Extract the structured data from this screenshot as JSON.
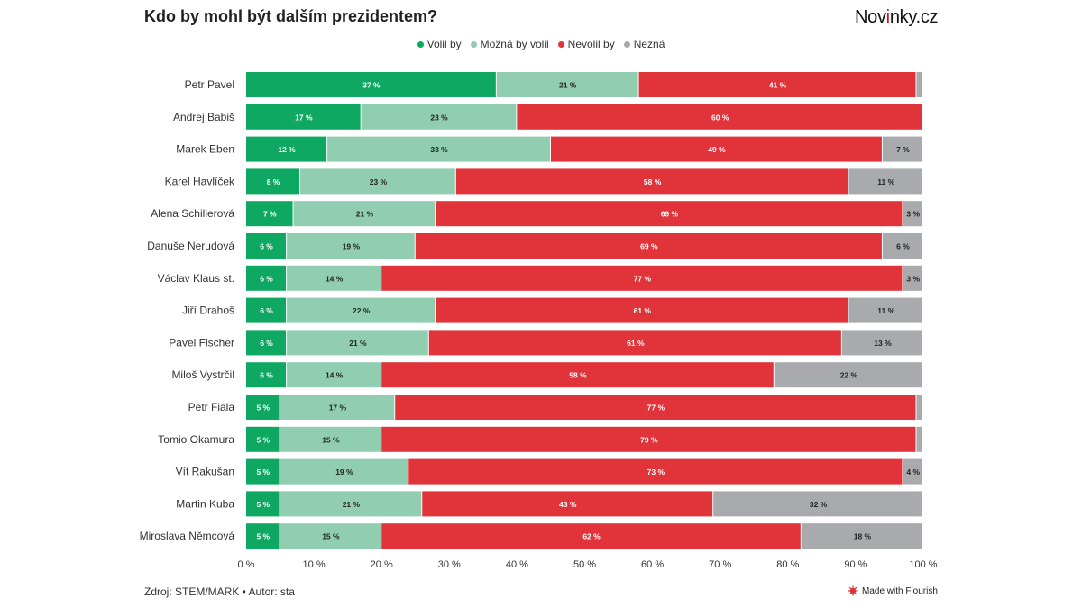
{
  "header": {
    "title": "Kdo by mohl být dalším prezidentem?",
    "brand_prefix": "Nov",
    "brand_highlight": "i",
    "brand_suffix": "nky.cz"
  },
  "footer": {
    "source": "Zdroj: STEM/MARK • Autor: sta",
    "flourish_label": "Made with Flourish"
  },
  "colors": {
    "voli": "#0fa862",
    "mozna": "#90cdb1",
    "nevolil": "#e0343a",
    "nezna": "#a8aaad",
    "brand_accent": "#e30613"
  },
  "chart_data": {
    "type": "bar",
    "orientation": "horizontal",
    "stacked": true,
    "title": "Kdo by mohl být dalším prezidentem?",
    "xlim": [
      0,
      100
    ],
    "xticks": [
      "0 %",
      "10 %",
      "20 %",
      "30 %",
      "40 %",
      "50 %",
      "60 %",
      "70 %",
      "80 %",
      "90 %",
      "100 %"
    ],
    "legend_position": "top-center",
    "categories": [
      "Petr Pavel",
      "Andrej Babiš",
      "Marek Eben",
      "Karel Havlíček",
      "Alena Schillerová",
      "Danuše Nerudová",
      "Václav Klaus st.",
      "Jiří Drahoš",
      "Pavel Fischer",
      "Miloš Vystrčil",
      "Petr Fiala",
      "Tomio Okamura",
      "Vít Rakušan",
      "Martin Kuba",
      "Miroslava Němcová"
    ],
    "series": [
      {
        "name": "Volil by",
        "color": "#0fa862",
        "label_color": "#ffffff",
        "values": [
          37,
          17,
          12,
          8,
          7,
          6,
          6,
          6,
          6,
          6,
          5,
          5,
          5,
          5,
          5
        ],
        "labels": [
          "37 %",
          "17 %",
          "12 %",
          "8 %",
          "7 %",
          "6 %",
          "6 %",
          "6 %",
          "6 %",
          "6 %",
          "5 %",
          "5 %",
          "5 %",
          "5 %",
          "5 %"
        ]
      },
      {
        "name": "Možná by volil",
        "color": "#90cdb1",
        "label_color": "#222222",
        "values": [
          21,
          23,
          33,
          23,
          21,
          19,
          14,
          22,
          21,
          14,
          17,
          15,
          19,
          21,
          15
        ],
        "labels": [
          "21 %",
          "23 %",
          "33 %",
          "23 %",
          "21 %",
          "19 %",
          "14 %",
          "22 %",
          "21 %",
          "14 %",
          "17 %",
          "15 %",
          "19 %",
          "21 %",
          "15 %"
        ]
      },
      {
        "name": "Nevolil by",
        "color": "#e0343a",
        "label_color": "#ffffff",
        "values": [
          41,
          60,
          49,
          58,
          69,
          69,
          77,
          61,
          61,
          58,
          77,
          79,
          73,
          43,
          62
        ],
        "labels": [
          "41 %",
          "60 %",
          "49 %",
          "58 %",
          "69 %",
          "69 %",
          "77 %",
          "61 %",
          "61 %",
          "58 %",
          "77 %",
          "79 %",
          "73 %",
          "43 %",
          "62 %"
        ]
      },
      {
        "name": "Nezná",
        "color": "#a8aaad",
        "label_color": "#222222",
        "values": [
          1,
          0,
          7,
          11,
          3,
          6,
          3,
          11,
          13,
          22,
          1,
          1,
          4,
          32,
          18
        ],
        "labels": [
          "",
          "",
          "7 %",
          "11 %",
          "3 %",
          "6 %",
          "3 %",
          "11 %",
          "13 %",
          "22 %",
          "",
          "",
          "4 %",
          "32 %",
          "18 %"
        ]
      }
    ]
  }
}
